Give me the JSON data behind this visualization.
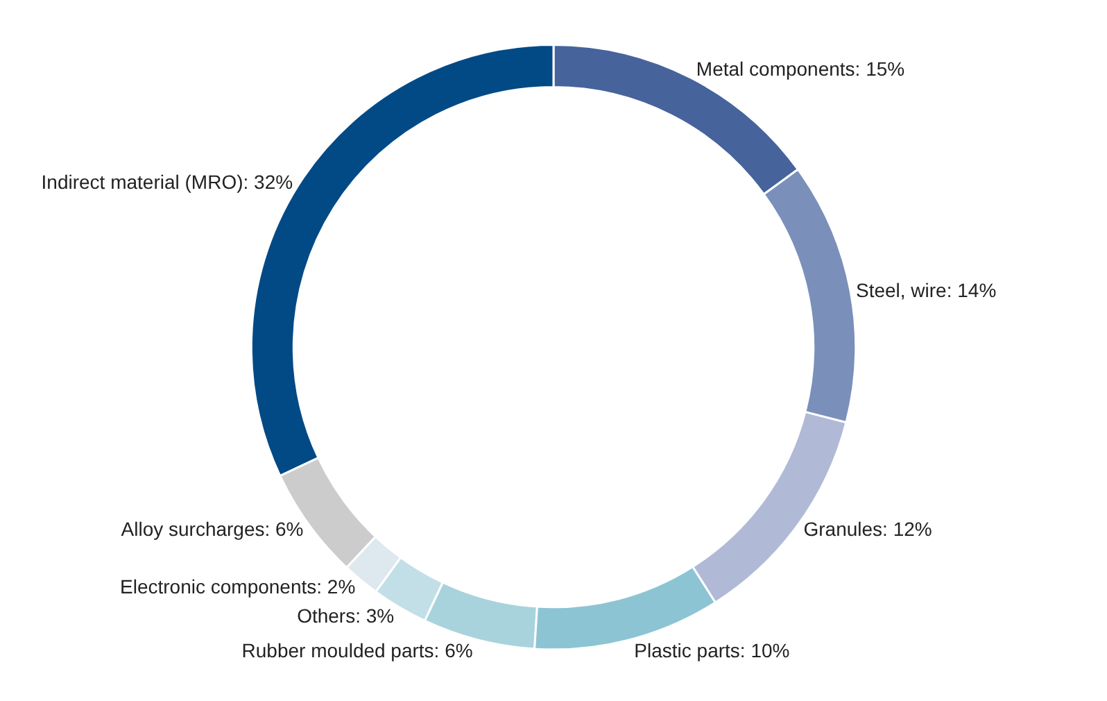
{
  "chart_data": {
    "type": "donut",
    "categories": [
      "Metal components",
      "Indirect material (MRO)",
      "Alloy surcharges",
      "Electronic components",
      "Others",
      "Rubber moulded parts",
      "Plastic parts",
      "Granules",
      "Steel, wire"
    ],
    "values": [
      15,
      32,
      6,
      2,
      3,
      6,
      10,
      12,
      14
    ],
    "value_labels": [
      "15%",
      "32%",
      "6%",
      "2%",
      "3%",
      "6%",
      "10%",
      "12%",
      "14%"
    ],
    "colors": [
      "#46639c",
      "#024a86",
      "#cccccc",
      "#dde9ef",
      "#c2dfe7",
      "#a8d3dc",
      "#8dc4d4",
      "#b0bad6",
      "#7a8fba"
    ],
    "legend": false
  }
}
